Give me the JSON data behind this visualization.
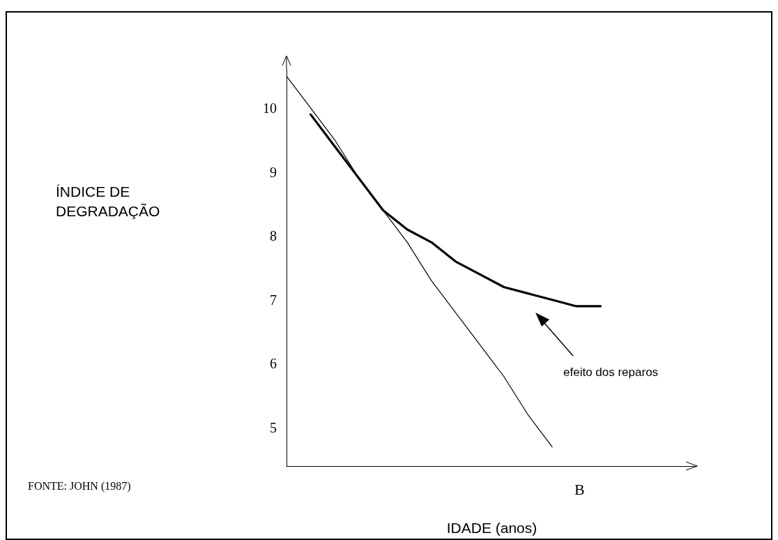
{
  "chart_data": {
    "type": "line",
    "xlabel": "IDADE (anos)",
    "categories": [
      null,
      null,
      null,
      null,
      null,
      null,
      null,
      null,
      null,
      null,
      null,
      null,
      null,
      null,
      null,
      null,
      null,
      null
    ],
    "series": [
      {
        "color": "#000000",
        "values": [
          10.5,
          10.0,
          9.5,
          8.9,
          8.4,
          7.9,
          7.3,
          6.8,
          6.3,
          5.8,
          5.2,
          4.7,
          null,
          null,
          null,
          null,
          null,
          null
        ]
      },
      {
        "color": "#000000",
        "values": [
          null,
          9.9,
          9.4,
          8.9,
          8.4,
          8.1,
          7.9,
          7.6,
          7.4,
          7.2,
          7.1,
          7.0,
          6.9,
          6.9,
          null,
          null,
          null,
          null
        ]
      }
    ],
    "ylim": [
      4.4,
      10.6
    ],
    "yticks": [
      5,
      6,
      7,
      8,
      9,
      10
    ],
    "grid": false,
    "marker": "none",
    "line_style": "solid",
    "annotations": [
      "ÍNDICE DE DEGRADAÇÃO",
      "efeito dos reparos",
      "B",
      "FONTE: JOHN (1987)"
    ]
  }
}
